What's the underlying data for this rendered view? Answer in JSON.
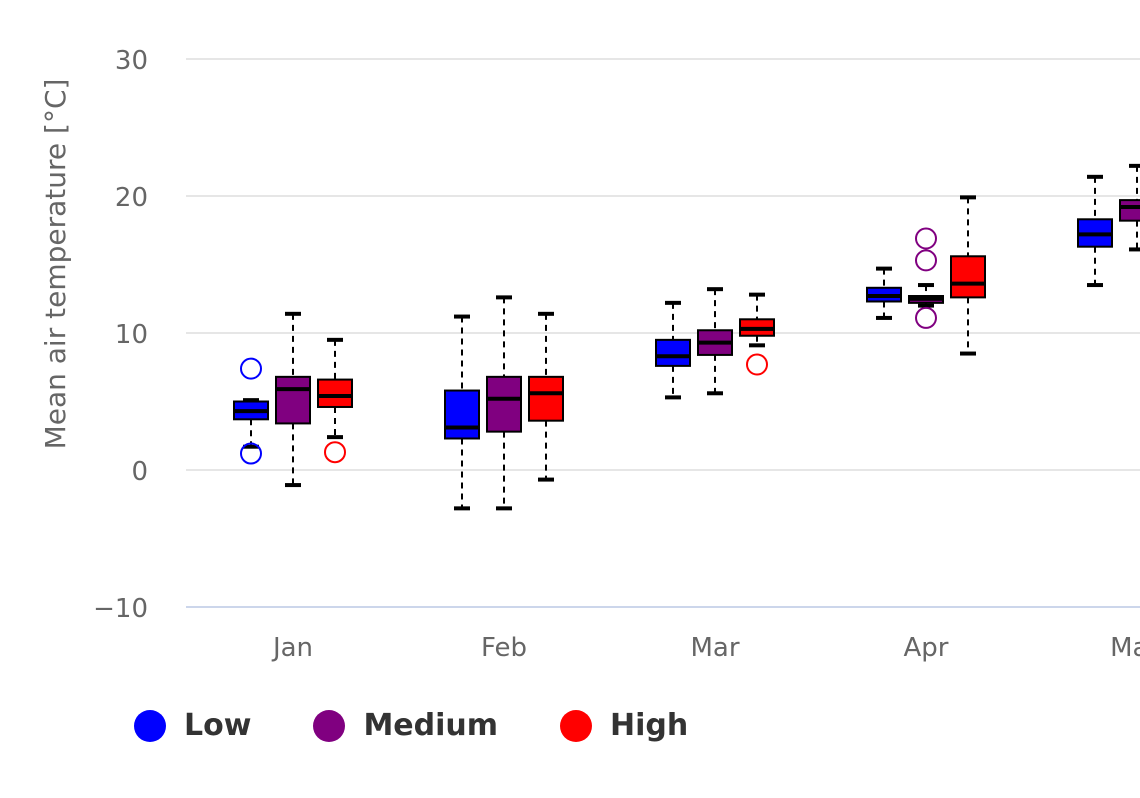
{
  "chart_data": {
    "type": "boxplot",
    "ylabel": "Mean air temperature [°C]",
    "xlabel": "",
    "ylim": [
      -10,
      30
    ],
    "yticks": [
      -10,
      0,
      10,
      20,
      30
    ],
    "grid": true,
    "legend_position": "bottom-left",
    "categories": [
      "Jan",
      "Feb",
      "Mar",
      "Apr",
      "May"
    ],
    "series": [
      {
        "name": "Low",
        "color": "#0000ff",
        "boxes": [
          {
            "min": 1.7,
            "q1": 3.7,
            "median": 4.3,
            "q3": 5.0,
            "max": 5.1
          },
          {
            "min": -2.8,
            "q1": 2.3,
            "median": 3.1,
            "q3": 5.8,
            "max": 11.2
          },
          {
            "min": 5.3,
            "q1": 7.6,
            "median": 8.3,
            "q3": 9.5,
            "max": 12.2
          },
          {
            "min": 11.1,
            "q1": 12.3,
            "median": 12.7,
            "q3": 13.3,
            "max": 14.7
          },
          {
            "min": 13.5,
            "q1": 16.3,
            "median": 17.2,
            "q3": 18.3,
            "max": 21.4
          }
        ],
        "outliers": [
          {
            "category": "Jan",
            "value": 7.4
          },
          {
            "category": "Jan",
            "value": 1.2
          }
        ]
      },
      {
        "name": "Medium",
        "color": "#800080",
        "boxes": [
          {
            "min": -1.1,
            "q1": 3.4,
            "median": 5.9,
            "q3": 6.8,
            "max": 11.4
          },
          {
            "min": -2.8,
            "q1": 2.8,
            "median": 5.2,
            "q3": 6.8,
            "max": 12.6
          },
          {
            "min": 5.6,
            "q1": 8.4,
            "median": 9.3,
            "q3": 10.2,
            "max": 13.2
          },
          {
            "min": 12.0,
            "q1": 12.2,
            "median": 12.5,
            "q3": 12.7,
            "max": 13.5
          },
          {
            "min": 16.1,
            "q1": 18.2,
            "median": 19.2,
            "q3": 19.7,
            "max": 22.2
          }
        ],
        "outliers": [
          {
            "category": "Apr",
            "value": 16.9
          },
          {
            "category": "Apr",
            "value": 15.3
          },
          {
            "category": "Apr",
            "value": 11.1
          }
        ]
      },
      {
        "name": "High",
        "color": "#ff0000",
        "boxes": [
          {
            "min": 2.4,
            "q1": 4.6,
            "median": 5.4,
            "q3": 6.6,
            "max": 9.5
          },
          {
            "min": -0.7,
            "q1": 3.6,
            "median": 5.6,
            "q3": 6.8,
            "max": 11.4
          },
          {
            "min": 9.1,
            "q1": 9.8,
            "median": 10.3,
            "q3": 11.0,
            "max": 12.8
          },
          {
            "min": 8.5,
            "q1": 12.6,
            "median": 13.6,
            "q3": 15.6,
            "max": 19.9
          },
          null
        ],
        "outliers": [
          {
            "category": "Jan",
            "value": 1.3
          },
          {
            "category": "Mar",
            "value": 7.7
          }
        ]
      }
    ]
  }
}
